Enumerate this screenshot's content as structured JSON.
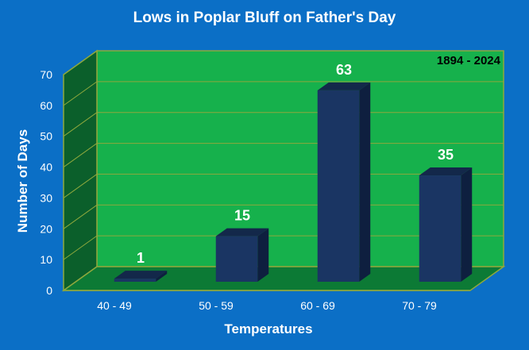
{
  "chart_data": {
    "type": "bar",
    "title": "Lows in Poplar Bluff on Father's Day",
    "xlabel": "Temperatures",
    "ylabel": "Number of Days",
    "annotation": "1894 - 2024",
    "categories": [
      "40 - 49",
      "50 - 59",
      "60 - 69",
      "70 - 79"
    ],
    "values": [
      1,
      15,
      63,
      35
    ],
    "data_labels": [
      "1",
      "15",
      "63",
      "35"
    ],
    "ylim": [
      0,
      70
    ],
    "y_ticks": [
      0,
      10,
      20,
      30,
      40,
      50,
      60,
      70
    ],
    "grid": true,
    "legend": "none",
    "colors": {
      "background": "#0b6fc6",
      "plot_back": "#16b14c",
      "plot_side": "#0b5f2b",
      "plot_floor": "#0c7a35",
      "grid": "#8ea83d",
      "bar_front": "#1a3563",
      "bar_top": "#13284a",
      "bar_side": "#0e1f3f"
    }
  }
}
